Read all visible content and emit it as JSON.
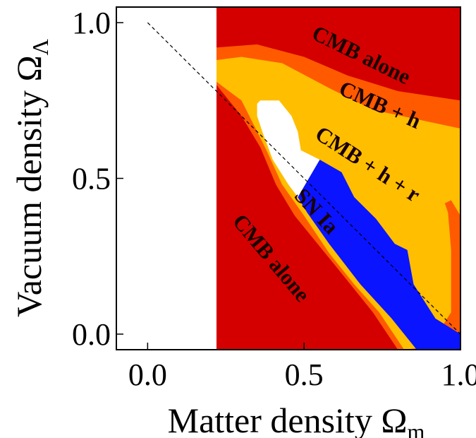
{
  "chart_data": {
    "type": "area",
    "title": "",
    "xlabel": "Matter density",
    "xlabel_symbol": "Ω",
    "xlabel_subscript": "m",
    "ylabel": "Vacuum density",
    "ylabel_symbol": "Ω",
    "ylabel_subscript": "Λ",
    "xlim": [
      -0.1,
      1.0
    ],
    "ylim": [
      -0.05,
      1.05
    ],
    "xticks": [
      "0.0",
      "0.5",
      "1.0"
    ],
    "yticks": [
      "0.0",
      "0.5",
      "1.0"
    ],
    "xtick_values": [
      0.0,
      0.5,
      1.0
    ],
    "ytick_values": [
      0.0,
      0.5,
      1.0
    ],
    "grid": false,
    "reference_line": {
      "style": "dashed",
      "color": "#000000",
      "x": [
        0.0,
        1.0
      ],
      "y": [
        1.0,
        0.0
      ]
    },
    "colors": {
      "cmb_alone": "#d40000",
      "cmb_h": "#ff5a00",
      "cmb_h_r": "#ffbe00",
      "sn_ia": "#0a14ff",
      "hole": "#ffffff"
    },
    "regions": [
      {
        "name": "CMB alone",
        "color_key": "cmb_alone",
        "outline": [
          [
            0.22,
            -0.05
          ],
          [
            0.22,
            1.05
          ],
          [
            1.0,
            1.05
          ],
          [
            1.0,
            -0.05
          ]
        ]
      },
      {
        "name": "CMB + h",
        "color_key": "cmb_h",
        "outline": [
          [
            0.22,
            0.92
          ],
          [
            0.35,
            0.93
          ],
          [
            0.5,
            0.89
          ],
          [
            0.64,
            0.83
          ],
          [
            0.8,
            0.78
          ],
          [
            1.0,
            0.75
          ],
          [
            1.0,
            0.0
          ],
          [
            0.91,
            -0.05
          ],
          [
            0.8,
            -0.05
          ],
          [
            0.72,
            0.07
          ],
          [
            0.6,
            0.22
          ],
          [
            0.47,
            0.38
          ],
          [
            0.41,
            0.48
          ],
          [
            0.36,
            0.6
          ],
          [
            0.3,
            0.7
          ],
          [
            0.22,
            0.8
          ]
        ]
      },
      {
        "name": "CMB + h + r",
        "color_key": "cmb_h_r",
        "outline": [
          [
            0.22,
            0.88
          ],
          [
            0.3,
            0.89
          ],
          [
            0.43,
            0.87
          ],
          [
            0.58,
            0.79
          ],
          [
            0.72,
            0.72
          ],
          [
            1.0,
            0.66
          ],
          [
            1.0,
            0.38
          ],
          [
            0.97,
            0.43
          ],
          [
            0.95,
            0.42
          ],
          [
            0.96,
            0.39
          ],
          [
            0.97,
            0.27
          ],
          [
            0.97,
            0.07
          ],
          [
            0.9,
            -0.04
          ],
          [
            0.82,
            -0.05
          ],
          [
            0.74,
            0.07
          ],
          [
            0.66,
            0.16
          ],
          [
            0.58,
            0.26
          ],
          [
            0.5,
            0.38
          ],
          [
            0.43,
            0.48
          ],
          [
            0.38,
            0.59
          ],
          [
            0.34,
            0.67
          ],
          [
            0.3,
            0.75
          ],
          [
            0.22,
            0.81
          ]
        ]
      },
      {
        "name": "SN Ia",
        "color_key": "sn_ia",
        "outline": [
          [
            0.48,
            0.44
          ],
          [
            0.55,
            0.56
          ],
          [
            0.62,
            0.52
          ],
          [
            0.66,
            0.44
          ],
          [
            0.73,
            0.37
          ],
          [
            0.79,
            0.29
          ],
          [
            0.83,
            0.27
          ],
          [
            0.85,
            0.16
          ],
          [
            0.92,
            0.05
          ],
          [
            1.0,
            0.0
          ],
          [
            1.0,
            -0.05
          ],
          [
            0.86,
            -0.05
          ],
          [
            0.78,
            0.05
          ],
          [
            0.68,
            0.16
          ],
          [
            0.58,
            0.29
          ],
          [
            0.51,
            0.39
          ]
        ]
      },
      {
        "name": "hole",
        "color_key": "hole",
        "outline": [
          [
            0.36,
            0.75
          ],
          [
            0.42,
            0.75
          ],
          [
            0.46,
            0.7
          ],
          [
            0.48,
            0.65
          ],
          [
            0.49,
            0.59
          ],
          [
            0.55,
            0.56
          ],
          [
            0.48,
            0.44
          ],
          [
            0.45,
            0.48
          ],
          [
            0.4,
            0.56
          ],
          [
            0.37,
            0.64
          ],
          [
            0.35,
            0.7
          ],
          [
            0.35,
            0.74
          ]
        ]
      }
    ],
    "annotations": [
      {
        "text": "CMB alone",
        "x": 0.68,
        "y": 0.89,
        "angle_deg": 26
      },
      {
        "text": "CMB + h",
        "x": 0.74,
        "y": 0.73,
        "angle_deg": 24
      },
      {
        "text": "CMB + h + r",
        "x": 0.7,
        "y": 0.54,
        "angle_deg": 33
      },
      {
        "text": "SN Ia",
        "x": 0.535,
        "y": 0.39,
        "angle_deg": 47
      },
      {
        "text": "CMB alone",
        "x": 0.39,
        "y": 0.24,
        "angle_deg": 50
      }
    ]
  }
}
